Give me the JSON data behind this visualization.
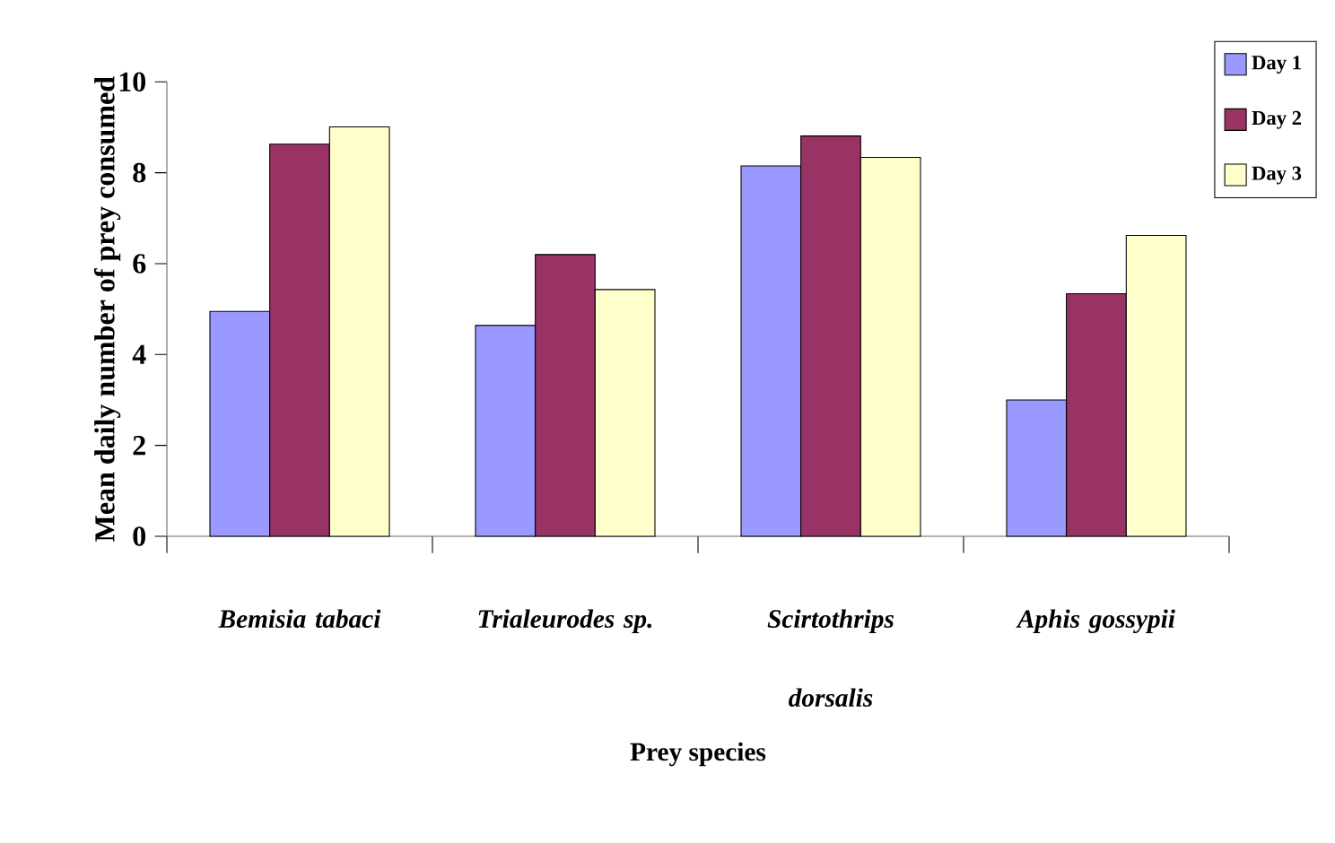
{
  "chart_data": {
    "type": "bar",
    "xlabel": "Prey species",
    "ylabel": "Mean daily number of prey consumed",
    "categories": [
      "*Bemisia tabaci*",
      "*Trialeurodes sp.*",
      "*Scirtothrips dorsalis*",
      "*Aphis gossypii*"
    ],
    "series": [
      {
        "name": "Day 1",
        "color": "#9999ff",
        "values": [
          4.95,
          4.64,
          8.15,
          3.0
        ]
      },
      {
        "name": "Day 2",
        "color": "#993366",
        "values": [
          8.63,
          6.2,
          8.81,
          5.34
        ]
      },
      {
        "name": "Day 3",
        "color": "#ffffcc",
        "values": [
          9.01,
          5.43,
          8.34,
          6.62
        ]
      }
    ],
    "ylim": [
      0,
      10
    ],
    "yticks": [
      0,
      2,
      4,
      6,
      8,
      10
    ],
    "grid": false,
    "legend": "top right"
  }
}
